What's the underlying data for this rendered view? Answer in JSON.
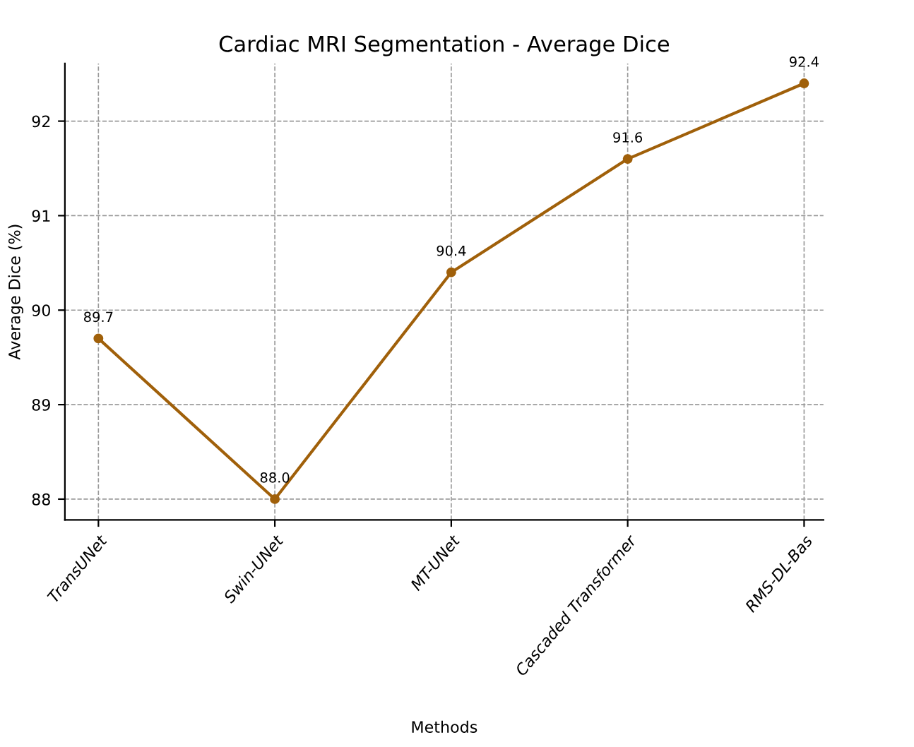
{
  "chart_data": {
    "type": "line",
    "title": "Cardiac MRI Segmentation - Average Dice",
    "xlabel": "Methods",
    "ylabel": "Average Dice (%)",
    "categories": [
      "TransUNet",
      "Swin-UNet",
      "MT-UNet",
      "Cascaded Transformer",
      "RMS-DL-Bas"
    ],
    "series": [
      {
        "color": "#a0600a",
        "values": [
          89.7,
          88.0,
          90.4,
          91.6,
          92.4
        ],
        "value_labels": [
          "89.7",
          "88.0",
          "90.4",
          "91.6",
          "92.4"
        ]
      }
    ],
    "ylim": [
      87.78,
      92.61
    ],
    "yticks": [
      88,
      89,
      90,
      91,
      92
    ],
    "grid": true,
    "marker": "circle",
    "line_style": "solid"
  }
}
